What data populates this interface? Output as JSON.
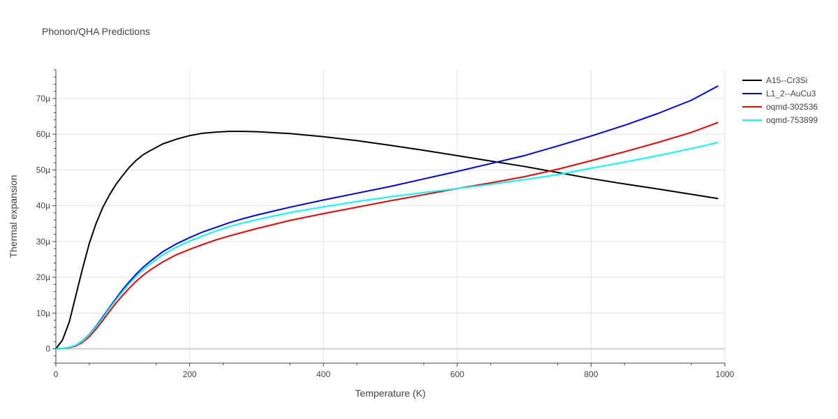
{
  "chart_data": {
    "type": "line",
    "title": "Phonon/QHA Predictions",
    "xlabel": "Temperature (K)",
    "ylabel": "Thermal expansion",
    "xlim": [
      0,
      1000
    ],
    "ylim": [
      -4,
      78
    ],
    "x_ticks": [
      0,
      200,
      400,
      600,
      800,
      1000
    ],
    "x_tick_labels": [
      "0",
      "200",
      "400",
      "600",
      "800",
      "1000"
    ],
    "y_ticks": [
      0,
      10,
      20,
      30,
      40,
      50,
      60,
      70
    ],
    "y_tick_labels": [
      "0",
      "10µ",
      "20µ",
      "30µ",
      "40µ",
      "50µ",
      "60µ",
      "70µ"
    ],
    "grid": true,
    "legend_position": "top-right",
    "series": [
      {
        "name": "A15--Cr3Si",
        "color": "#000000",
        "x": [
          0,
          10,
          20,
          30,
          40,
          50,
          60,
          70,
          80,
          90,
          100,
          110,
          120,
          130,
          140,
          160,
          180,
          200,
          220,
          240,
          260,
          280,
          300,
          350,
          400,
          450,
          500,
          550,
          600,
          650,
          700,
          750,
          800,
          850,
          900,
          950,
          990
        ],
        "y": [
          0,
          2.5,
          7.5,
          15,
          22.5,
          29.5,
          35,
          39.5,
          43,
          46,
          48.5,
          50.8,
          52.7,
          54.2,
          55.3,
          57.3,
          58.6,
          59.6,
          60.3,
          60.6,
          60.8,
          60.8,
          60.7,
          60.2,
          59.3,
          58.2,
          56.9,
          55.5,
          54.0,
          52.5,
          51.0,
          49.3,
          47.6,
          46.1,
          44.7,
          43.2,
          42.0
        ]
      },
      {
        "name": "L1_2--AuCu3",
        "color": "#0000ee",
        "x": [
          0,
          10,
          20,
          30,
          40,
          50,
          60,
          70,
          80,
          90,
          100,
          110,
          120,
          130,
          140,
          160,
          180,
          200,
          220,
          240,
          260,
          280,
          300,
          350,
          400,
          450,
          500,
          550,
          600,
          650,
          700,
          750,
          800,
          850,
          900,
          950,
          990
        ],
        "y": [
          0,
          0.1,
          0.4,
          1.0,
          2.2,
          4.0,
          6.3,
          8.9,
          11.5,
          14.1,
          16.6,
          18.8,
          20.9,
          22.7,
          24.3,
          27.2,
          29.3,
          31.1,
          32.7,
          34.0,
          35.3,
          36.4,
          37.4,
          39.6,
          41.6,
          43.5,
          45.4,
          47.5,
          49.6,
          51.8,
          54.0,
          56.7,
          59.5,
          62.5,
          65.8,
          69.5,
          73.5
        ]
      },
      {
        "name": "oqmd-302536",
        "color": "#ee0000",
        "x": [
          0,
          10,
          20,
          30,
          40,
          50,
          60,
          70,
          80,
          90,
          100,
          110,
          120,
          130,
          140,
          160,
          180,
          200,
          220,
          240,
          260,
          280,
          300,
          350,
          400,
          450,
          500,
          550,
          600,
          650,
          700,
          750,
          800,
          850,
          900,
          950,
          990
        ],
        "y": [
          0,
          0.1,
          0.3,
          0.8,
          1.8,
          3.4,
          5.5,
          7.9,
          10.4,
          12.8,
          15.0,
          17.0,
          18.9,
          20.5,
          21.9,
          24.3,
          26.3,
          27.8,
          29.2,
          30.5,
          31.6,
          32.6,
          33.6,
          35.9,
          37.8,
          39.6,
          41.4,
          43.1,
          44.8,
          46.4,
          48.1,
          50.2,
          52.6,
          55.1,
          57.7,
          60.5,
          63.3
        ]
      },
      {
        "name": "oqmd-753899",
        "color": "#00ffff",
        "x": [
          0,
          10,
          20,
          30,
          40,
          50,
          60,
          70,
          80,
          90,
          100,
          110,
          120,
          130,
          140,
          160,
          180,
          200,
          220,
          240,
          260,
          280,
          300,
          350,
          400,
          450,
          500,
          550,
          600,
          650,
          700,
          750,
          800,
          850,
          900,
          950,
          990
        ],
        "y": [
          0,
          0.1,
          0.4,
          1.0,
          2.1,
          3.9,
          6.1,
          8.6,
          11.2,
          13.7,
          16.1,
          18.3,
          20.3,
          22.0,
          23.6,
          26.3,
          28.4,
          30.1,
          31.6,
          33.0,
          34.2,
          35.2,
          36.1,
          38.1,
          39.7,
          41.2,
          42.5,
          43.7,
          44.8,
          46.0,
          47.3,
          48.7,
          50.5,
          52.2,
          54.0,
          56.0,
          57.7
        ]
      }
    ]
  }
}
